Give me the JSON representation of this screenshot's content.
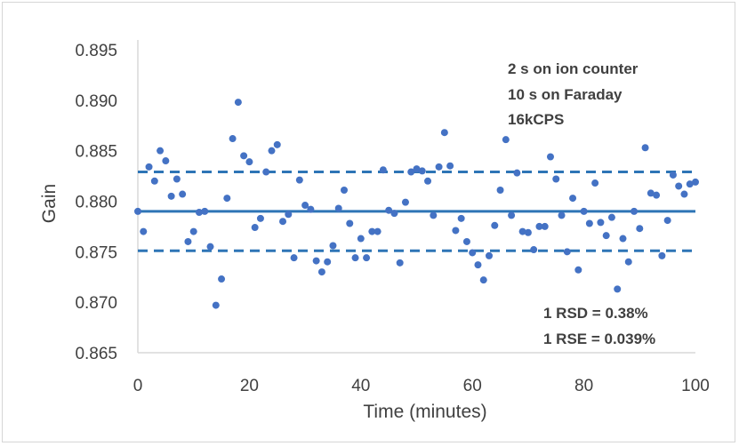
{
  "chart_data": {
    "type": "scatter",
    "xlabel": "Time (minutes)",
    "ylabel": "Gain",
    "xlim": [
      0,
      100
    ],
    "ylim": [
      0.865,
      0.895
    ],
    "x_ticks": [
      "0",
      "20",
      "40",
      "60",
      "80",
      "100"
    ],
    "y_ticks": [
      "0.865",
      "0.870",
      "0.875",
      "0.880",
      "0.885",
      "0.890",
      "0.895"
    ],
    "grid": false,
    "colors": {
      "points": "#4472c4",
      "lines": "#2e75b6",
      "axis": "#d9d9d9"
    },
    "series": [
      {
        "x": [
          0,
          1,
          2,
          3,
          4,
          5,
          6,
          7,
          8,
          9,
          10,
          11,
          12,
          13,
          14,
          15,
          16,
          17,
          18,
          19,
          20,
          21,
          22,
          23,
          24,
          25,
          26,
          27,
          28,
          29,
          30,
          31,
          32,
          33,
          34,
          35,
          36,
          37,
          38,
          39,
          40,
          41,
          42,
          43,
          44,
          45,
          46,
          47,
          48,
          49,
          50,
          51,
          52,
          53,
          54,
          55,
          56,
          57,
          58,
          59,
          60,
          61,
          62,
          63,
          64,
          65,
          66,
          67,
          68,
          69,
          70,
          71,
          72,
          73,
          74,
          75,
          76,
          77,
          78,
          79,
          80,
          81,
          82,
          83,
          84,
          85,
          86,
          87,
          88,
          89,
          90,
          91,
          92,
          93,
          94,
          95,
          96,
          97,
          98,
          99,
          100
        ],
        "values": [
          0.879,
          0.877,
          0.8834,
          0.882,
          0.885,
          0.884,
          0.8805,
          0.8822,
          0.8807,
          0.876,
          0.877,
          0.8789,
          0.879,
          0.8755,
          0.8697,
          0.8723,
          0.8803,
          0.8862,
          0.8898,
          0.8845,
          0.8839,
          0.8774,
          0.8783,
          0.8829,
          0.885,
          0.8856,
          0.878,
          0.8787,
          0.8744,
          0.8821,
          0.8796,
          0.8792,
          0.8741,
          0.873,
          0.874,
          0.8756,
          0.8793,
          0.8811,
          0.8778,
          0.8744,
          0.8763,
          0.8744,
          0.877,
          0.877,
          0.8831,
          0.8791,
          0.8788,
          0.8739,
          0.8799,
          0.8829,
          0.8832,
          0.883,
          0.882,
          0.8786,
          0.8834,
          0.8868,
          0.8835,
          0.8771,
          0.8783,
          0.876,
          0.8749,
          0.8737,
          0.8722,
          0.8746,
          0.8776,
          0.8811,
          0.8861,
          0.8786,
          0.8828,
          0.877,
          0.8769,
          0.8752,
          0.8775,
          0.8775,
          0.8844,
          0.8822,
          0.8786,
          0.875,
          0.8803,
          0.8732,
          0.879,
          0.8778,
          0.8818,
          0.8779,
          0.8766,
          0.8784,
          0.8713,
          0.8763,
          0.874,
          0.879,
          0.8773,
          0.8853,
          0.8808,
          0.8806,
          0.8746,
          0.8781,
          0.8826,
          0.8815,
          0.8807,
          0.8817,
          0.8819
        ]
      }
    ],
    "reference_lines": [
      {
        "y": 0.879,
        "style": "solid"
      },
      {
        "y": 0.8829,
        "style": "dashed"
      },
      {
        "y": 0.8751,
        "style": "dashed"
      }
    ],
    "annotations": {
      "top": [
        "2 s on ion counter",
        "10 s on Faraday",
        "16kCPS"
      ],
      "bottom": [
        "1 RSD = 0.38%",
        "1 RSE = 0.039%"
      ]
    }
  }
}
